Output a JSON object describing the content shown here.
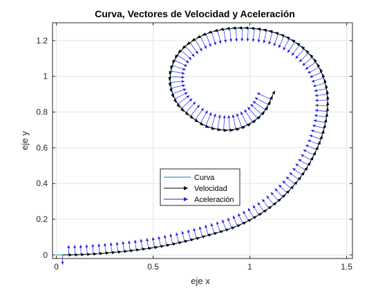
{
  "window": {
    "background": "#ffffff"
  },
  "chart_data": {
    "type": "line",
    "title": "Curva, Vectores de Velocidad y Aceleración",
    "xlabel": "eje x",
    "ylabel": "eje y",
    "xlim": [
      -0.02,
      1.53
    ],
    "ylim": [
      -0.02,
      1.3
    ],
    "xticks": [
      0,
      0.5,
      1,
      1.5
    ],
    "xtick_labels": [
      "0",
      "0.5",
      "1",
      "1.5"
    ],
    "yticks": [
      0,
      0.2,
      0.4,
      0.6,
      0.8,
      1,
      1.2
    ],
    "ytick_labels": [
      "0",
      "0.2",
      "0.4",
      "0.6",
      "0.8",
      "1",
      "1.2"
    ],
    "grid": true,
    "legend_position": "lower-center",
    "colors": {
      "curve": "#2a9fc1",
      "velocity": "#000000",
      "acceleration": "#1f1fe6",
      "grid": "#e3e3e3",
      "axes": "#262626"
    },
    "series": [
      {
        "name": "Curva",
        "kind": "curve",
        "x": [
          0,
          0.15,
          0.35,
          0.55,
          0.75,
          0.95,
          1.12,
          1.25,
          1.34,
          1.39,
          1.4,
          1.37,
          1.31,
          1.22,
          1.11,
          0.98,
          0.85,
          0.74,
          0.65,
          0.6,
          0.59,
          0.62,
          0.69,
          0.78,
          0.89,
          0.99,
          1.07,
          1.12
        ],
        "y": [
          0,
          0.003,
          0.02,
          0.05,
          0.1,
          0.17,
          0.28,
          0.42,
          0.58,
          0.74,
          0.89,
          1.02,
          1.12,
          1.2,
          1.25,
          1.27,
          1.26,
          1.22,
          1.15,
          1.06,
          0.96,
          0.86,
          0.78,
          0.72,
          0.7,
          0.73,
          0.8,
          0.9
        ]
      },
      {
        "name": "Velocidad",
        "kind": "velocity-arrows",
        "note_count": 120
      },
      {
        "name": "Aceleración",
        "kind": "acceleration-arrows",
        "note_count": 120
      }
    ]
  }
}
